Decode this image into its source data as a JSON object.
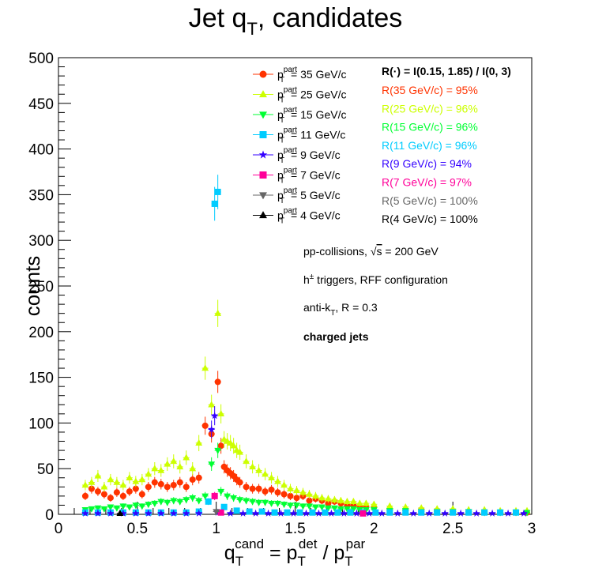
{
  "title": {
    "main": "Jet q",
    "sub": "T",
    "rest": ", candidates"
  },
  "chart_data": {
    "type": "scatter",
    "xlim": [
      0,
      3
    ],
    "ylim": [
      0,
      500
    ],
    "x_ticks": [
      "0",
      "0.5",
      "1",
      "1.5",
      "2",
      "2.5",
      "3"
    ],
    "y_ticks": [
      "0",
      "50",
      "100",
      "150",
      "200",
      "250",
      "300",
      "350",
      "400",
      "450",
      "500"
    ],
    "xlabel": {
      "q": "q",
      "qsub": "T",
      "qsup": "cand",
      "eq": " = p",
      "psub1": "T",
      "psup1": "det",
      "slash": " / p",
      "psub2": "T",
      "psup2": "par"
    },
    "ylabel": "counts",
    "grid": false,
    "legend_position": "top-center",
    "legend_prefix": {
      "p": "p",
      "sup": "part",
      "sub": "T"
    },
    "series": [
      {
        "name": "= 35 GeV/c",
        "color": "#ff3300",
        "marker": "circle",
        "x": [
          0.17,
          0.21,
          0.25,
          0.29,
          0.33,
          0.37,
          0.41,
          0.45,
          0.49,
          0.53,
          0.57,
          0.61,
          0.65,
          0.69,
          0.73,
          0.77,
          0.81,
          0.85,
          0.89,
          0.93,
          0.97,
          1.01,
          1.03,
          1.05,
          1.07,
          1.09,
          1.11,
          1.13,
          1.15,
          1.19,
          1.23,
          1.27,
          1.31,
          1.35,
          1.39,
          1.43,
          1.47,
          1.51,
          1.55,
          1.59,
          1.63,
          1.67,
          1.71,
          1.75,
          1.79,
          1.83,
          1.87,
          1.91,
          1.95,
          2.0,
          2.1,
          2.2,
          2.3,
          2.4,
          2.5,
          2.6,
          2.7,
          2.8,
          2.9,
          2.97
        ],
        "y": [
          20,
          28,
          25,
          22,
          18,
          24,
          20,
          25,
          28,
          22,
          30,
          35,
          33,
          30,
          32,
          35,
          30,
          38,
          40,
          97,
          88,
          145,
          75,
          52,
          48,
          45,
          42,
          38,
          35,
          30,
          28,
          28,
          25,
          27,
          24,
          22,
          20,
          18,
          20,
          15,
          17,
          15,
          12,
          14,
          12,
          10,
          10,
          9,
          8,
          8,
          6,
          5,
          5,
          4,
          3,
          3,
          3,
          2,
          2,
          2
        ]
      },
      {
        "name": "= 25 GeV/c",
        "color": "#ccff00",
        "marker": "triangle-up",
        "x": [
          0.17,
          0.21,
          0.25,
          0.29,
          0.33,
          0.37,
          0.41,
          0.45,
          0.49,
          0.53,
          0.57,
          0.61,
          0.65,
          0.69,
          0.73,
          0.77,
          0.81,
          0.85,
          0.89,
          0.93,
          0.97,
          1.01,
          1.03,
          1.05,
          1.07,
          1.09,
          1.11,
          1.13,
          1.15,
          1.19,
          1.23,
          1.27,
          1.31,
          1.35,
          1.39,
          1.43,
          1.47,
          1.51,
          1.55,
          1.59,
          1.63,
          1.67,
          1.71,
          1.75,
          1.79,
          1.83,
          1.87,
          1.91,
          1.95,
          2.0,
          2.1,
          2.2,
          2.3,
          2.4,
          2.5,
          2.6,
          2.7,
          2.8,
          2.9,
          2.97
        ],
        "y": [
          32,
          35,
          42,
          30,
          38,
          35,
          32,
          40,
          36,
          38,
          44,
          50,
          48,
          55,
          58,
          52,
          62,
          50,
          78,
          160,
          120,
          220,
          110,
          82,
          80,
          78,
          75,
          70,
          68,
          58,
          52,
          48,
          44,
          40,
          36,
          32,
          28,
          26,
          24,
          22,
          20,
          18,
          17,
          16,
          15,
          14,
          14,
          12,
          12,
          11,
          9,
          8,
          7,
          6,
          6,
          5,
          5,
          4,
          4,
          4
        ]
      },
      {
        "name": "= 15 GeV/c",
        "color": "#00ff33",
        "marker": "triangle-down",
        "x": [
          0.17,
          0.21,
          0.25,
          0.29,
          0.33,
          0.37,
          0.41,
          0.45,
          0.49,
          0.53,
          0.57,
          0.61,
          0.65,
          0.69,
          0.73,
          0.77,
          0.81,
          0.85,
          0.89,
          0.93,
          0.97,
          1.01,
          1.03,
          1.07,
          1.11,
          1.15,
          1.19,
          1.23,
          1.27,
          1.31,
          1.35,
          1.39,
          1.43,
          1.47,
          1.51,
          1.55,
          1.59,
          1.63,
          1.67,
          1.71,
          1.75,
          1.79,
          1.83,
          1.87,
          1.91,
          1.95,
          2.0,
          2.1,
          2.2,
          2.3,
          2.4,
          2.5,
          2.6,
          2.7,
          2.8,
          2.9,
          2.97
        ],
        "y": [
          5,
          6,
          7,
          6,
          8,
          7,
          9,
          8,
          10,
          9,
          11,
          12,
          14,
          13,
          15,
          14,
          16,
          18,
          15,
          20,
          55,
          70,
          25,
          20,
          18,
          16,
          15,
          14,
          13,
          13,
          12,
          12,
          11,
          10,
          10,
          9,
          9,
          8,
          8,
          7,
          7,
          6,
          6,
          6,
          5,
          5,
          5,
          4,
          4,
          3,
          3,
          3,
          3,
          2,
          2,
          2,
          2
        ]
      },
      {
        "name": "= 11 GeV/c",
        "color": "#00ccff",
        "marker": "square",
        "x": [
          0.17,
          0.25,
          0.33,
          0.41,
          0.49,
          0.57,
          0.65,
          0.73,
          0.81,
          0.89,
          0.95,
          0.99,
          1.01,
          1.05,
          1.13,
          1.21,
          1.29,
          1.37,
          1.45,
          1.53,
          1.61,
          1.69,
          1.77,
          1.85,
          1.93,
          2.01,
          2.1,
          2.2,
          2.3,
          2.4,
          2.5,
          2.6,
          2.7,
          2.8,
          2.9
        ],
        "y": [
          2,
          2,
          2,
          2,
          2,
          2,
          2,
          2,
          2,
          3,
          14,
          340,
          353,
          8,
          4,
          3,
          3,
          2,
          2,
          2,
          2,
          2,
          2,
          2,
          2,
          2,
          2,
          2,
          2,
          2,
          2,
          2,
          2,
          2,
          2
        ]
      },
      {
        "name": "= 9 GeV/c",
        "color": "#3300ff",
        "marker": "star",
        "x": [
          0.17,
          0.25,
          0.33,
          0.41,
          0.49,
          0.57,
          0.65,
          0.73,
          0.81,
          0.89,
          0.97,
          0.99,
          1.01,
          1.09,
          1.17,
          1.25,
          1.33,
          1.41,
          1.49,
          1.57,
          1.65,
          1.73,
          1.81,
          1.89,
          1.97,
          2.05,
          2.15,
          2.25,
          2.35,
          2.45,
          2.55,
          2.65,
          2.75,
          2.85,
          2.95
        ],
        "y": [
          1,
          1,
          1,
          1,
          1,
          1,
          1,
          1,
          1,
          1,
          93,
          108,
          2,
          1,
          1,
          1,
          1,
          1,
          1,
          1,
          1,
          1,
          1,
          1,
          1,
          1,
          1,
          1,
          1,
          1,
          1,
          1,
          1,
          1,
          1
        ]
      },
      {
        "name": "= 7 GeV/c",
        "color": "#ff0099",
        "marker": "square",
        "x": [
          0.99,
          1.03,
          1.93
        ],
        "y": [
          20,
          2,
          1
        ]
      },
      {
        "name": "= 5 GeV/c",
        "color": "#666666",
        "marker": "triangle-down",
        "x": [
          1.0
        ],
        "y": [
          3
        ]
      },
      {
        "name": "= 4 GeV/c",
        "color": "#000000",
        "marker": "triangle-up",
        "x": [
          0.39
        ],
        "y": [
          1
        ]
      }
    ]
  },
  "ratios": {
    "header": "R(·) = I(0.15, 1.85) / I(0, 3)",
    "items": [
      {
        "text": "R(35 GeV/c) = 95%",
        "color": "#ff3300"
      },
      {
        "text": "R(25 GeV/c) = 96%",
        "color": "#ccff00"
      },
      {
        "text": "R(15 GeV/c) = 96%",
        "color": "#00ff33"
      },
      {
        "text": "R(11 GeV/c) = 96%",
        "color": "#00ccff"
      },
      {
        "text": "R(9 GeV/c) = 94%",
        "color": "#3300ff"
      },
      {
        "text": "R(7 GeV/c) = 97%",
        "color": "#ff0099"
      },
      {
        "text": "R(5 GeV/c) = 100%",
        "color": "#666666"
      },
      {
        "text": "R(4 GeV/c) = 100%",
        "color": "#000000"
      }
    ]
  },
  "info": {
    "line1_prefix": "pp-collisions, ",
    "line1_sqrt": "s",
    "line1_suffix": " = 200 GeV",
    "line2_h": "h",
    "line2_sup": "±",
    "line2_rest": " triggers, RFF configuration",
    "line3_prefix": "anti-k",
    "line3_sub": "T",
    "line3_rest": ", R = 0.3",
    "line4": "charged jets"
  }
}
